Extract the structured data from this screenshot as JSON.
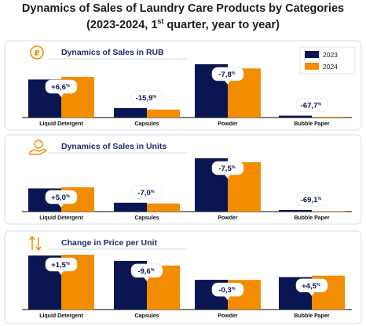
{
  "title": {
    "line1": "Dynamics of Sales of Laundry Care Products by Categories",
    "line2_prefix": "(2023-2024, 1",
    "line2_sup": "st",
    "line2_suffix": " quarter, year to year)"
  },
  "legend": [
    "2023",
    "2024"
  ],
  "colors": {
    "y2023": "#0b1551",
    "y2024": "#f28c00",
    "panel_border": "#d9dbe8",
    "axis": "#000000",
    "panel_title": "#1f2a6b"
  },
  "panel_icons": [
    "ruble-coin-icon",
    "hand-coins-icon",
    "price-arrows-icon"
  ],
  "chart_data": [
    {
      "type": "bar",
      "title": "Dynamics of Sales in RUB",
      "categories": [
        "Liquid Detergent",
        "Capsules",
        "Powder",
        "Bubble Paper"
      ],
      "series": [
        {
          "name": "2023",
          "values": [
            100,
            25,
            140,
            5
          ]
        },
        {
          "name": "2024",
          "values": [
            107,
            21,
            129,
            2
          ]
        }
      ],
      "changes": [
        "+6,6",
        "-15,9",
        "-7,8",
        "-67,7"
      ],
      "change_unit": "%"
    },
    {
      "type": "bar",
      "title": "Dynamics of Sales in Units",
      "categories": [
        "Liquid Detergent",
        "Capsules",
        "Powder",
        "Bubble Paper"
      ],
      "series": [
        {
          "name": "2023",
          "values": [
            100,
            38,
            230,
            7
          ]
        },
        {
          "name": "2024",
          "values": [
            105,
            35,
            213,
            2
          ]
        }
      ],
      "changes": [
        "+5,0",
        "-7,0",
        "-7,5",
        "-69,1"
      ],
      "change_unit": "%"
    },
    {
      "type": "bar",
      "title": "Change in Price per Unit",
      "categories": [
        "Liquid Detergent",
        "Capsules",
        "Powder",
        "Bubble Paper"
      ],
      "series": [
        {
          "name": "2023",
          "values": [
            100,
            90,
            55,
            60
          ]
        },
        {
          "name": "2024",
          "values": [
            101.5,
            81.4,
            54.8,
            62.7
          ]
        }
      ],
      "changes": [
        "+1,5",
        "-9,6",
        "-0,3",
        "+4,5"
      ],
      "change_unit": "%"
    }
  ]
}
